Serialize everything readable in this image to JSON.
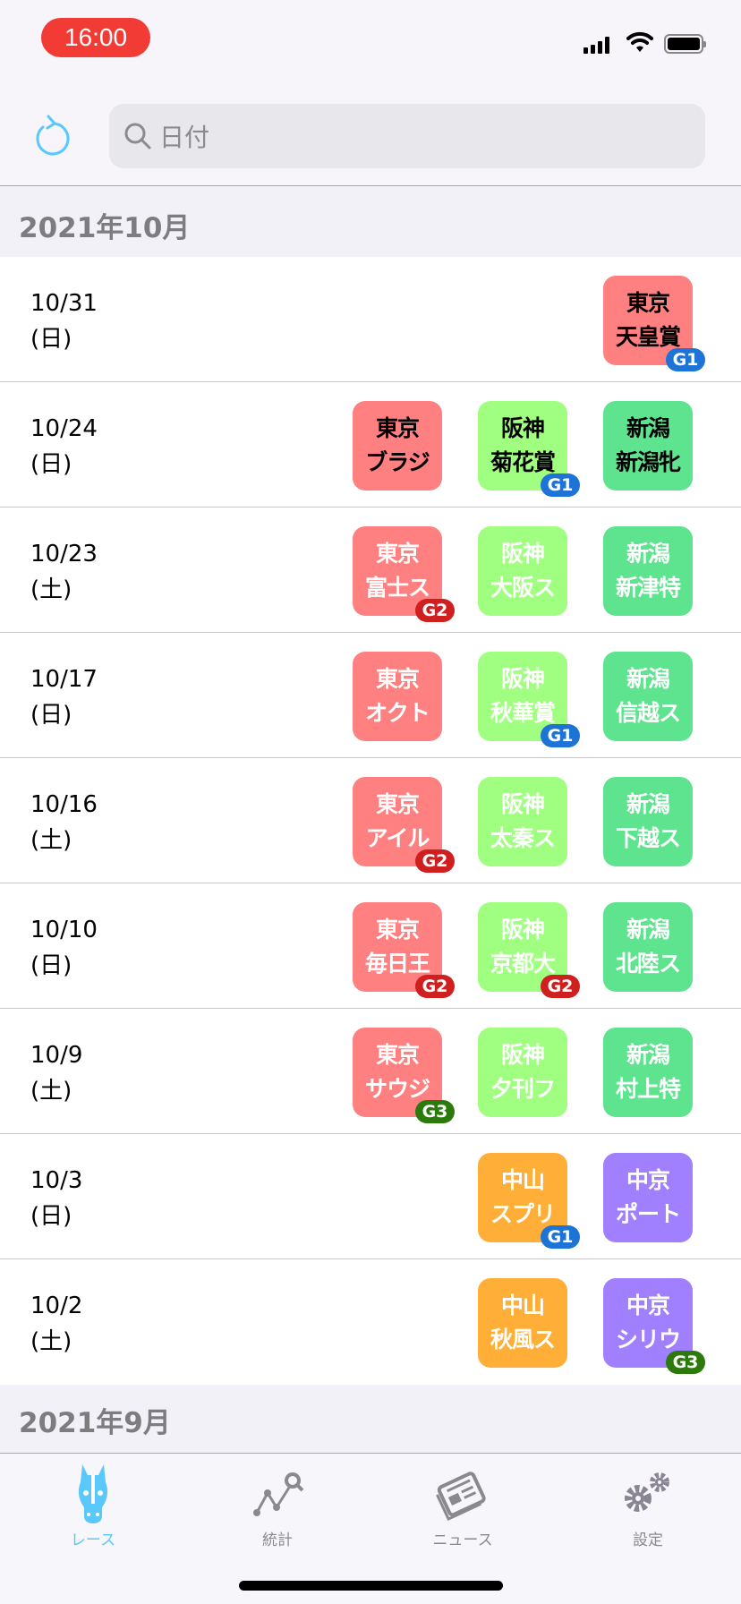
{
  "status": {
    "time": "16:00"
  },
  "header": {
    "search_placeholder": "日付"
  },
  "colors": {
    "東京": "#ff8080",
    "阪神": "#a0ff80",
    "新潟": "#5ee38e",
    "中山": "#ffaf38",
    "中京": "#a080ff",
    "G1": "#1e74d6",
    "G2": "#cf1f1f",
    "G3": "#2b7a0b"
  },
  "sections": [
    {
      "title": "2021年10月",
      "rows": [
        {
          "date": "10/31",
          "weekday": "(日)",
          "races": [
            null,
            null,
            {
              "venue": "東京",
              "race": "天皇賞",
              "grade": "G1",
              "upcoming": true
            }
          ]
        },
        {
          "date": "10/24",
          "weekday": "(日)",
          "races": [
            {
              "venue": "東京",
              "race": "ブラジ",
              "upcoming": true
            },
            {
              "venue": "阪神",
              "race": "菊花賞",
              "grade": "G1",
              "upcoming": true
            },
            {
              "venue": "新潟",
              "race": "新潟牝",
              "upcoming": true
            }
          ]
        },
        {
          "date": "10/23",
          "weekday": "(土)",
          "races": [
            {
              "venue": "東京",
              "race": "富士ス",
              "grade": "G2"
            },
            {
              "venue": "阪神",
              "race": "大阪ス"
            },
            {
              "venue": "新潟",
              "race": "新津特"
            }
          ]
        },
        {
          "date": "10/17",
          "weekday": "(日)",
          "races": [
            {
              "venue": "東京",
              "race": "オクト"
            },
            {
              "venue": "阪神",
              "race": "秋華賞",
              "grade": "G1"
            },
            {
              "venue": "新潟",
              "race": "信越ス"
            }
          ]
        },
        {
          "date": "10/16",
          "weekday": "(土)",
          "races": [
            {
              "venue": "東京",
              "race": "アイル",
              "grade": "G2"
            },
            {
              "venue": "阪神",
              "race": "太秦ス"
            },
            {
              "venue": "新潟",
              "race": "下越ス"
            }
          ]
        },
        {
          "date": "10/10",
          "weekday": "(日)",
          "races": [
            {
              "venue": "東京",
              "race": "毎日王",
              "grade": "G2"
            },
            {
              "venue": "阪神",
              "race": "京都大",
              "grade": "G2"
            },
            {
              "venue": "新潟",
              "race": "北陸ス"
            }
          ]
        },
        {
          "date": "10/9",
          "weekday": "(土)",
          "races": [
            {
              "venue": "東京",
              "race": "サウジ",
              "grade": "G3"
            },
            {
              "venue": "阪神",
              "race": "夕刊フ"
            },
            {
              "venue": "新潟",
              "race": "村上特"
            }
          ]
        },
        {
          "date": "10/3",
          "weekday": "(日)",
          "races": [
            null,
            {
              "venue": "中山",
              "race": "スプリ",
              "grade": "G1"
            },
            {
              "venue": "中京",
              "race": "ポート"
            }
          ]
        },
        {
          "date": "10/2",
          "weekday": "(土)",
          "races": [
            null,
            {
              "venue": "中山",
              "race": "秋風ス"
            },
            {
              "venue": "中京",
              "race": "シリウ",
              "grade": "G3"
            }
          ]
        }
      ]
    },
    {
      "title": "2021年9月",
      "rows": []
    }
  ],
  "tabs": [
    {
      "label": "レース",
      "icon": "horse-icon",
      "active": true
    },
    {
      "label": "統計",
      "icon": "chart-search-icon"
    },
    {
      "label": "ニュース",
      "icon": "newspaper-icon"
    },
    {
      "label": "設定",
      "icon": "gears-icon"
    }
  ]
}
